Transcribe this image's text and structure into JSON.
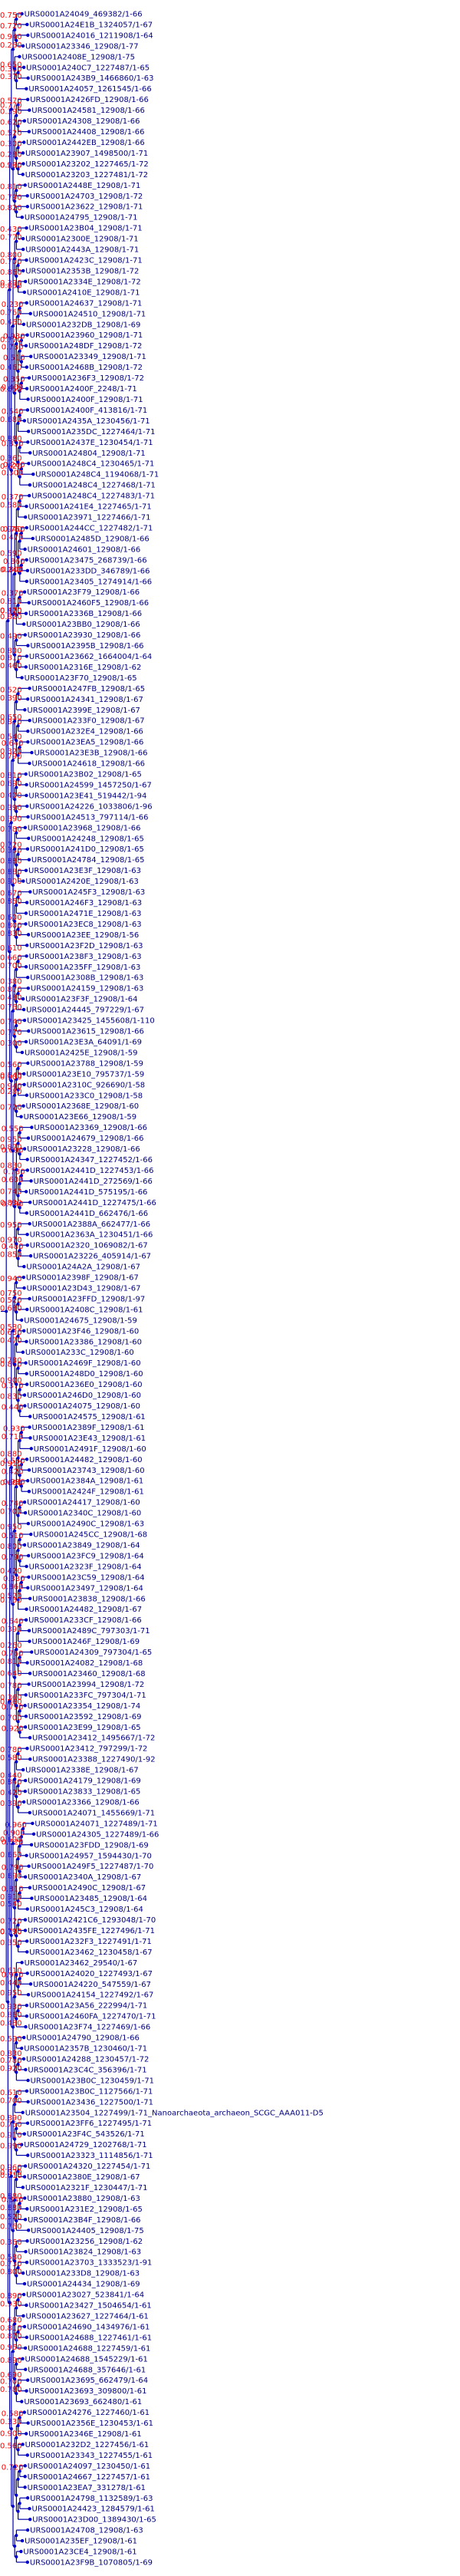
{
  "colors": {
    "branch": "#0000aa",
    "node": "#0000cc",
    "leaf_label": "#000080",
    "support_label": "#ff0000",
    "background": "#ffffff"
  },
  "tree": {
    "leaves": [
      "URS0001A24049_469382/1-66",
      "URS0001A24E1B_1324057/1-67",
      "URS0001A24016_1211908/1-64",
      "URS0001A23346_12908/1-77",
      "URS0001A2408E_12908/1-75",
      "URS0001A240C7_1227487/1-65",
      "URS0001A243B9_1466860/1-63",
      "URS0001A24057_1261545/1-66",
      "URS0001A2426FD_12908/1-66",
      "URS0001A24581_12908/1-66",
      "URS0001A24308_12908/1-66",
      "URS0001A24408_12908/1-66",
      "URS0001A2442EB_12908/1-66",
      "URS0001A23907_1498500/1-71",
      "URS0001A23202_1227465/1-72",
      "URS0001A23203_1227481/1-72",
      "URS0001A2448E_12908/1-71",
      "URS0001A24703_12908/1-72",
      "URS0001A23622_12908/1-71",
      "URS0001A24795_12908/1-71",
      "URS0001A23B04_12908/1-71",
      "URS0001A2300E_12908/1-71",
      "URS0001A2443A_12908/1-71",
      "URS0001A2423C_12908/1-71",
      "URS0001A2353B_12908/1-72",
      "URS0001A2334E_12908/1-72",
      "URS0001A2410E_12908/1-71",
      "URS0001A24637_12908/1-71",
      "URS0001A24510_12908/1-71",
      "URS0001A232DB_12908/1-69",
      "URS0001A23960_12908/1-71",
      "URS0001A248DF_12908/1-72",
      "URS0001A23349_12908/1-71",
      "URS0001A2468B_12908/1-72",
      "URS0001A236F3_12908/1-72",
      "URS0001A2400F_2248/1-71",
      "URS0001A2400F_12908/1-71",
      "URS0001A2400F_413816/1-71",
      "URS0001A2435A_1230456/1-71",
      "URS0001A235DC_1227464/1-71",
      "URS0001A2437E_1230454/1-71",
      "URS0001A24804_12908/1-71",
      "URS0001A248C4_1230465/1-71",
      "URS0001A248C4_1194068/1-71",
      "URS0001A248C4_1227468/1-71",
      "URS0001A248C4_1227483/1-71",
      "URS0001A241E4_1227465/1-71",
      "URS0001A23971_1227466/1-71",
      "URS0001A244CC_1227482/1-71",
      "URS0001A2485D_12908/1-66",
      "URS0001A24601_12908/1-66",
      "URS0001A23475_268739/1-66",
      "URS0001A233DD_346789/1-66",
      "URS0001A23405_1274914/1-66",
      "URS0001A23F79_12908/1-66",
      "URS0001A2460F5_12908/1-66",
      "URS0001A2336B_12908/1-66",
      "URS0001A23BB0_12908/1-66",
      "URS0001A23930_12908/1-66",
      "URS0001A2395B_12908/1-66",
      "URS0001A23662_1664004/1-64",
      "URS0001A2316E_12908/1-62",
      "URS0001A23F70_12908/1-65",
      "URS0001A247FB_12908/1-65",
      "URS0001A24341_12908/1-67",
      "URS0001A2399E_12908/1-67",
      "URS0001A233F0_12908/1-67",
      "URS0001A232E4_12908/1-66",
      "URS0001A23EA5_12908/1-66",
      "URS0001A23E3B_12908/1-66",
      "URS0001A24618_12908/1-66",
      "URS0001A23B02_12908/1-65",
      "URS0001A24599_1457250/1-67",
      "URS0001A23E41_519442/1-94",
      "URS0001A24226_1033806/1-96",
      "URS0001A24513_797114/1-66",
      "URS0001A23968_12908/1-66",
      "URS0001A24248_12908/1-65",
      "URS0001A241D0_12908/1-65",
      "URS0001A24784_12908/1-65",
      "URS0001A23E3F_12908/1-63",
      "URS0001A2420E_12908/1-63",
      "URS0001A245F3_12908/1-63",
      "URS0001A246F3_12908/1-63",
      "URS0001A2471E_12908/1-63",
      "URS0001A23EC8_12908/1-63",
      "URS0001A23EE_12908/1-56",
      "URS0001A23F2D_12908/1-63",
      "URS0001A238F3_12908/1-63",
      "URS0001A235FF_12908/1-63",
      "URS0001A2308B_12908/1-63",
      "URS0001A24159_12908/1-63",
      "URS0001A23F3F_12908/1-64",
      "URS0001A24445_797229/1-67",
      "URS0001A23425_1455608/1-110",
      "URS0001A23615_12908/1-66",
      "URS0001A23E3A_64091/1-69",
      "URS0001A2425E_12908/1-59",
      "URS0001A23788_12908/1-59",
      "URS0001A23E10_795737/1-59",
      "URS0001A2310C_926690/1-58",
      "URS0001A233C0_12908/1-58",
      "URS0001A2368E_12908/1-60",
      "URS0001A23E66_12908/1-59",
      "URS0001A23369_12908/1-66",
      "URS0001A24679_12908/1-66",
      "URS0001A23228_12908/1-66",
      "URS0001A24347_1227452/1-66",
      "URS0001A2441D_1227453/1-66",
      "URS0001A2441D_272569/1-66",
      "URS0001A2441D_575195/1-66",
      "URS0001A2441D_1227475/1-66",
      "URS0001A2441D_662476/1-66",
      "URS0001A2388A_662477/1-66",
      "URS0001A2363A_1230451/1-66",
      "URS0001A2320_1069082/1-67",
      "URS0001A23226_405914/1-67",
      "URS0001A24A2A_12908/1-67",
      "URS0001A2398F_12908/1-67",
      "URS0001A23D43_12908/1-67",
      "URS0001A23FFD_12908/1-97",
      "URS0001A2408C_12908/1-61",
      "URS0001A24675_12908/1-59",
      "URS0001A23F46_12908/1-60",
      "URS0001A23386_12908/1-60",
      "URS0001A233C_12908/1-60",
      "URS0001A2469F_12908/1-60",
      "URS0001A248D0_12908/1-60",
      "URS0001A236E0_12908/1-60",
      "URS0001A246D0_12908/1-60",
      "URS0001A24075_12908/1-60",
      "URS0001A24575_12908/1-61",
      "URS0001A2389F_12908/1-61",
      "URS0001A23E43_12908/1-61",
      "URS0001A2491F_12908/1-60",
      "URS0001A24482_12908/1-60",
      "URS0001A23743_12908/1-60",
      "URS0001A2384A_12908/1-61",
      "URS0001A2424F_12908/1-61",
      "URS0001A24417_12908/1-60",
      "URS0001A2340C_12908/1-60",
      "URS0001A2490C_12908/1-63",
      "URS0001A245CC_12908/1-68",
      "URS0001A23849_12908/1-64",
      "URS0001A23FC9_12908/1-64",
      "URS0001A2323F_12908/1-64",
      "URS0001A23C59_12908/1-64",
      "URS0001A23497_12908/1-64",
      "URS0001A23838_12908/1-66",
      "URS0001A24482_12908/1-67",
      "URS0001A233CF_12908/1-66",
      "URS0001A2489C_797303/1-71",
      "URS0001A246F_12908/1-69",
      "URS0001A24309_797304/1-65",
      "URS0001A24082_12908/1-68",
      "URS0001A23460_12908/1-68",
      "URS0001A23994_12908/1-72",
      "URS0001A233FC_797304/1-71",
      "URS0001A23354_12908/1-74",
      "URS0001A23592_12908/1-69",
      "URS0001A23E99_12908/1-65",
      "URS0001A23412_1495667/1-72",
      "URS0001A23412_797299/1-72",
      "URS0001A23388_1227490/1-92",
      "URS0001A2338E_12908/1-67",
      "URS0001A24179_12908/1-69",
      "URS0001A23833_12908/1-65",
      "URS0001A23366_12908/1-66",
      "URS0001A24071_1455669/1-71",
      "URS0001A24071_1227489/1-71",
      "URS0001A24305_1227489/1-66",
      "URS0001A23FDD_12908/1-69",
      "URS0001A24957_1594430/1-70",
      "URS0001A249F5_1227487/1-70",
      "URS0001A2340A_12908/1-67",
      "URS0001A2490C_12908/1-67",
      "URS0001A23485_12908/1-64",
      "URS0001A245C3_12908/1-64",
      "URS0001A2421C6_1293048/1-70",
      "URS0001A2435FE_1227496/1-71",
      "URS0001A232F3_1227491/1-71",
      "URS0001A23462_1230458/1-67",
      "URS0001A23462_29540/1-67",
      "URS0001A24020_1227493/1-67",
      "URS0001A24220_547559/1-67",
      "URS0001A24154_1227492/1-67",
      "URS0001A23A56_222994/1-71",
      "URS0001A2460FA_1227470/1-71",
      "URS0001A23F74_1227469/1-66",
      "URS0001A24790_12908/1-66",
      "URS0001A2357B_1230460/1-71",
      "URS0001A24288_1230457/1-72",
      "URS0001A23C4C_356396/1-71",
      "URS0001A23B0C_1230459/1-71",
      "URS0001A23B0C_1127566/1-71",
      "URS0001A23436_1227500/1-71",
      "URS0001A23504_1227499/1-71_Nanoarchaeota_archaeon_SCGC_AAA011-D5",
      "URS0001A23FF6_1227495/1-71",
      "URS0001A23F4C_543526/1-71",
      "URS0001A24729_1202768/1-71",
      "URS0001A23323_1114856/1-71",
      "URS0001A24320_1227454/1-71",
      "URS0001A2380E_12908/1-67",
      "URS0001A2321F_1230447/1-71",
      "URS0001A23880_12908/1-63",
      "URS0001A231E2_12908/1-65",
      "URS0001A23B4F_12908/1-66",
      "URS0001A24405_12908/1-75",
      "URS0001A23256_12908/1-62",
      "URS0001A23824_12908/1-63",
      "URS0001A23703_1333523/1-91",
      "URS0001A233D8_12908/1-63",
      "URS0001A24434_12908/1-69",
      "URS0001A23027_523841/1-64",
      "URS0001A23427_1504654/1-61",
      "URS0001A23627_1227464/1-61",
      "URS0001A24690_1434976/1-61",
      "URS0001A24688_1227461/1-61",
      "URS0001A24688_1227459/1-61",
      "URS0001A24688_1545229/1-61",
      "URS0001A24688_357646/1-61",
      "URS0001A23695_662479/1-64",
      "URS0001A23693_309800/1-61",
      "URS0001A23693_662480/1-61",
      "URS0001A24276_1227460/1-61",
      "URS0001A2356E_1230453/1-61",
      "URS0001A2346E_12908/1-61",
      "URS0001A232D2_1227456/1-61",
      "URS0001A23343_1227455/1-61",
      "URS0001A24097_1230450/1-61",
      "URS0001A24667_1227457/1-61",
      "URS0001A23EA7_331278/1-61",
      "URS0001A24798_1132589/1-63",
      "URS0001A24423_1284579/1-61",
      "URS0001A23D00_1389430/1-65",
      "URS0001A24708_12908/1-63",
      "URS0001A235EF_12908/1-61",
      "URS0001A23CE4_12908/1-61",
      "URS0001A23F9B_1070805/1-69"
    ],
    "supports": [
      "0.750",
      "0.940",
      "0.720",
      "0.380",
      "0.370",
      "0.650",
      "0.260",
      "0.570",
      "0.620",
      "0.390",
      "0.300",
      "0.990",
      "0.280",
      "0.520",
      "0.810",
      "0.820",
      "0.790",
      "0.260",
      "0.770",
      "0.430",
      "0.770",
      "0.700",
      "0.390",
      "0.860",
      "0.800",
      "0.230",
      "0.760",
      "0.930",
      "0.510",
      "0.730",
      "0.350",
      "0.400",
      "0.460",
      "0.770",
      "0.540",
      "0.680",
      "0.830",
      "0.260",
      "0.300",
      "0.360",
      "0.880",
      "0.650",
      "0.460",
      "0.370",
      "0.580",
      "0.750",
      "0.470",
      "0.860",
      "0.800",
      "0.590",
      "0.940",
      "0.370",
      "0.810",
      "0.320",
      "0.240",
      "0.490",
      "0.810",
      "0.460",
      "0.800",
      "0.470",
      "0.620",
      "0.850",
      "0.520",
      "0.390",
      "0.870",
      "0.640",
      "0.320",
      "0.540",
      "0.650",
      "0.810",
      "0.690",
      "0.390",
      "0.400",
      "0.790",
      "0.780",
      "0.330",
      "0.880",
      "0.880",
      "0.720",
      "0.670",
      "0.850",
      "0.800",
      "0.830",
      "0.600",
      "0.900",
      "0.390",
      "0.660",
      "0.700",
      "0.870",
      "0.480",
      "0.380",
      "0.740",
      "0.300",
      "0.770",
      "0.760",
      "0.560",
      "0.940",
      "0.540",
      "0.720",
      "0.280",
      "0.550",
      "0.690",
      "0.950",
      "0.780",
      "0.600",
      "0.790",
      "0.740",
      "0.830",
      "0.950",
      "0.480",
      "0.850",
      "0.970",
      "0.830",
      "0.870",
      "0.900",
      "0.610",
      "0.820",
      "0.940",
      "0.520",
      "0.680",
      "0.750",
      "0.630",
      "0.470",
      "0.860",
      "0.370",
      "0.440",
      "0.830",
      "0.900",
      "0.780",
      "0.580",
      "0.930",
      "0.710",
      "0.530",
      "0.980",
      "0.420",
      "0.880",
      "0.740",
      "0.700",
      "0.600",
      "0.510",
      "0.790",
      "0.800",
      "0.330",
      "0.860",
      "0.520",
      "0.420",
      "0.950",
      "0.640",
      "0.390",
      "0.760",
      "0.810",
      "0.260",
      "0.780",
      "0.790",
      "0.920",
      "0.700",
      "0.860",
      "0.640",
      "0.730",
      "0.910",
      "0.780",
      "0.580",
      "0.840",
      "0.390",
      "0.420",
      "0.440",
      "0.960",
      "0.900",
      "0.620",
      "0.790",
      "0.660",
      "0.810",
      "0.910",
      "0.690",
      "0.720",
      "0.350",
      "0.770",
      "0.540",
      "0.600",
      "0.950",
      "0.440",
      "0.610",
      "0.930",
      "0.860",
      "0.950",
      "0.590",
      "0.780",
      "0.920",
      "0.830",
      "0.480",
      "0.790",
      "0.360",
      "0.610",
      "0.700",
      "0.750",
      "0.990",
      "0.910",
      "0.890",
      "0.960",
      "0.610",
      "0.840",
      "0.880",
      "0.520",
      "0.880",
      "0.360",
      "0.730",
      "0.800",
      "0.580",
      "0.760",
      "0.570",
      "0.890",
      "0.930",
      "0.810",
      "0.870",
      "0.680",
      "0.890",
      "0.700",
      "0.780",
      "0.690",
      "0.950",
      "0.580",
      "0.330",
      "0.560",
      "0.900",
      "0.720"
    ]
  }
}
